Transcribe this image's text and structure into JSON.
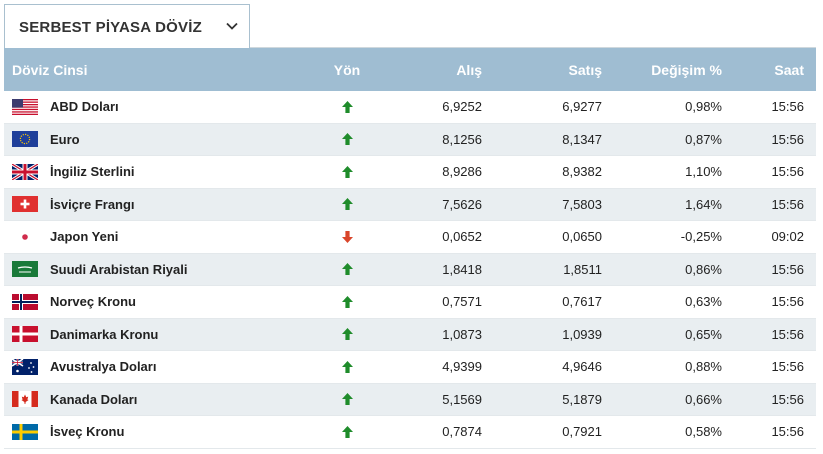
{
  "dropdown": {
    "label": "SERBEST PİYASA DÖVİZ"
  },
  "columns": {
    "name": "Döviz Cinsi",
    "direction": "Yön",
    "buy": "Alış",
    "sell": "Satış",
    "change": "Değişim %",
    "time": "Saat"
  },
  "colors": {
    "header_bg": "#9fbdd2",
    "row_alt_bg": "#e9eef1",
    "up_arrow": "#1f8c2b",
    "down_arrow": "#d9452a"
  },
  "rows": [
    {
      "flag": "us-flag-icon",
      "name": "ABD Doları",
      "direction": "up",
      "buy": "6,9252",
      "sell": "6,9277",
      "change": "0,98%",
      "time": "15:56"
    },
    {
      "flag": "eu-flag-icon",
      "name": "Euro",
      "direction": "up",
      "buy": "8,1256",
      "sell": "8,1347",
      "change": "0,87%",
      "time": "15:56"
    },
    {
      "flag": "uk-flag-icon",
      "name": "İngiliz Sterlini",
      "direction": "up",
      "buy": "8,9286",
      "sell": "8,9382",
      "change": "1,10%",
      "time": "15:56"
    },
    {
      "flag": "ch-flag-icon",
      "name": "İsviçre Frangı",
      "direction": "up",
      "buy": "7,5626",
      "sell": "7,5803",
      "change": "1,64%",
      "time": "15:56"
    },
    {
      "flag": "jp-flag-icon",
      "name": "Japon Yeni",
      "direction": "down",
      "buy": "0,0652",
      "sell": "0,0650",
      "change": "-0,25%",
      "time": "09:02"
    },
    {
      "flag": "sa-flag-icon",
      "name": "Suudi Arabistan Riyali",
      "direction": "up",
      "buy": "1,8418",
      "sell": "1,8511",
      "change": "0,86%",
      "time": "15:56"
    },
    {
      "flag": "no-flag-icon",
      "name": "Norveç Kronu",
      "direction": "up",
      "buy": "0,7571",
      "sell": "0,7617",
      "change": "0,63%",
      "time": "15:56"
    },
    {
      "flag": "dk-flag-icon",
      "name": "Danimarka Kronu",
      "direction": "up",
      "buy": "1,0873",
      "sell": "1,0939",
      "change": "0,65%",
      "time": "15:56"
    },
    {
      "flag": "au-flag-icon",
      "name": "Avustralya Doları",
      "direction": "up",
      "buy": "4,9399",
      "sell": "4,9646",
      "change": "0,88%",
      "time": "15:56"
    },
    {
      "flag": "ca-flag-icon",
      "name": "Kanada Doları",
      "direction": "up",
      "buy": "5,1569",
      "sell": "5,1879",
      "change": "0,66%",
      "time": "15:56"
    },
    {
      "flag": "se-flag-icon",
      "name": "İsveç Kronu",
      "direction": "up",
      "buy": "0,7874",
      "sell": "0,7921",
      "change": "0,58%",
      "time": "15:56"
    }
  ]
}
